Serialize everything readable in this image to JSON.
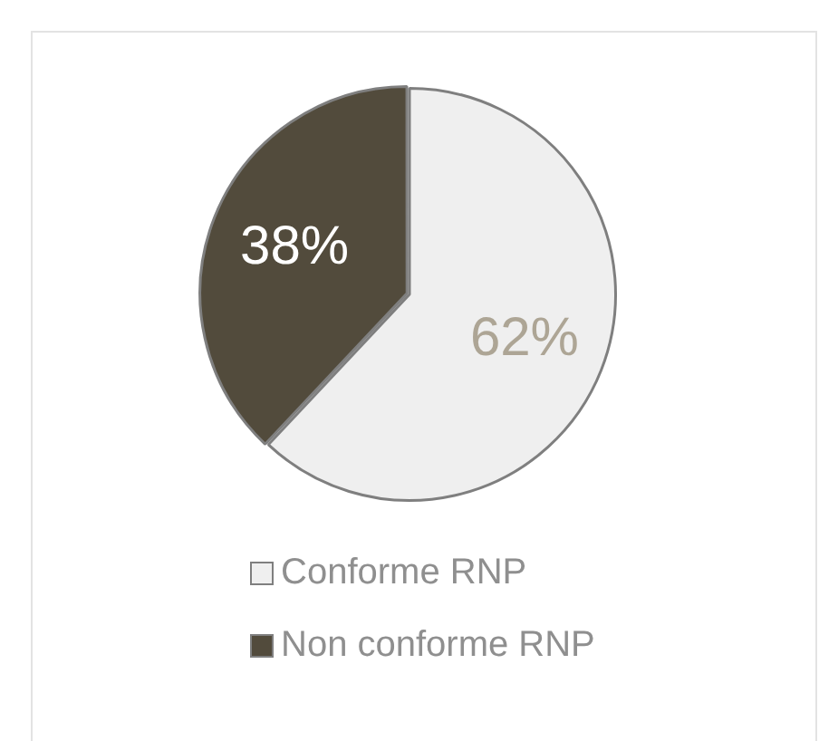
{
  "chart_data": {
    "type": "pie",
    "categories": [
      "Conforme RNP",
      "Non conforme RNP"
    ],
    "values": [
      62,
      38
    ],
    "colors": [
      "#efefef",
      "#524b3c"
    ],
    "value_labels": [
      "62%",
      "38%"
    ],
    "legend": "bottom"
  }
}
